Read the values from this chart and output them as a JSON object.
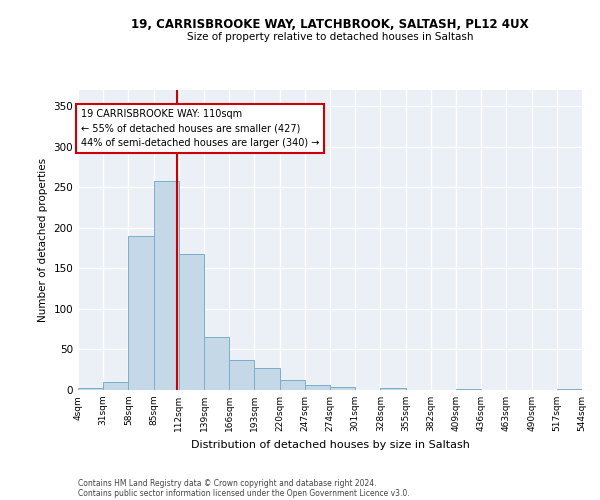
{
  "title_line1": "19, CARRISBROOKE WAY, LATCHBROOK, SALTASH, PL12 4UX",
  "title_line2": "Size of property relative to detached houses in Saltash",
  "xlabel": "Distribution of detached houses by size in Saltash",
  "ylabel": "Number of detached properties",
  "footnote1": "Contains HM Land Registry data © Crown copyright and database right 2024.",
  "footnote2": "Contains public sector information licensed under the Open Government Licence v3.0.",
  "bar_color": "#c5d8e8",
  "bar_edge_color": "#7baec8",
  "background_color": "#eaf0f6",
  "grid_color": "#ffffff",
  "vline_x": 110,
  "vline_color": "#cc0000",
  "annotation_text": "19 CARRISBROOKE WAY: 110sqm\n← 55% of detached houses are smaller (427)\n44% of semi-detached houses are larger (340) →",
  "annotation_box_color": "#ffffff",
  "annotation_box_edge": "#cc0000",
  "bin_edges": [
    4,
    31,
    58,
    85,
    112,
    139,
    166,
    193,
    220,
    247,
    274,
    301,
    328,
    355,
    382,
    409,
    436,
    463,
    490,
    517,
    544
  ],
  "bar_heights": [
    2,
    10,
    190,
    258,
    168,
    65,
    37,
    27,
    12,
    6,
    4,
    0,
    3,
    0,
    0,
    1,
    0,
    0,
    0,
    1
  ],
  "ylim": [
    0,
    370
  ],
  "yticks": [
    0,
    50,
    100,
    150,
    200,
    250,
    300,
    350
  ]
}
